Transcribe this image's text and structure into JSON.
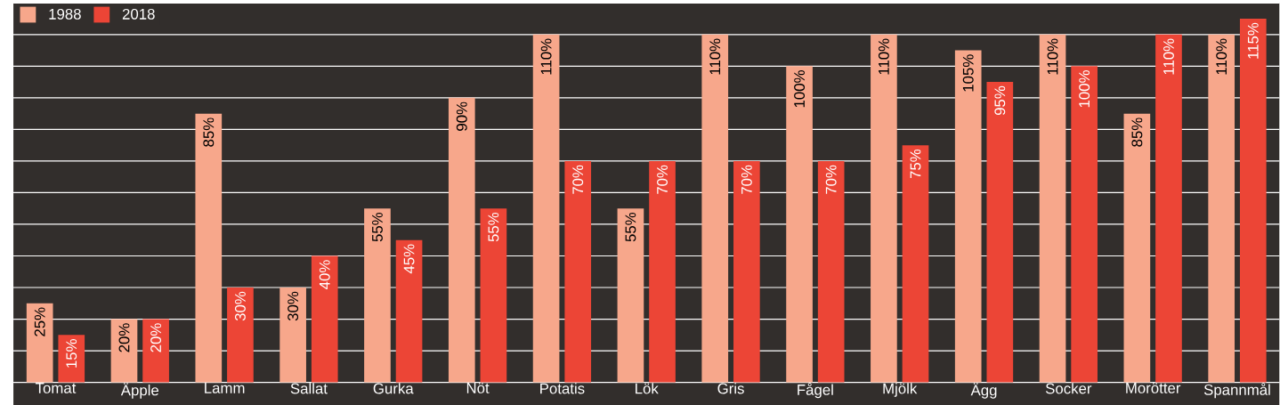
{
  "chart_data": {
    "type": "bar",
    "categories": [
      "Tomat",
      "Äpple",
      "Lamm",
      "Sallat",
      "Gurka",
      "Nöt",
      "Potatis",
      "Lök",
      "Gris",
      "Fågel",
      "Mjölk",
      "Ägg",
      "Socker",
      "Morötter",
      "Spannmål"
    ],
    "series": [
      {
        "name": "1988",
        "color": "#f7a78b",
        "values": [
          25,
          20,
          85,
          30,
          55,
          90,
          110,
          55,
          110,
          100,
          110,
          105,
          110,
          85,
          110
        ],
        "value_labels": [
          "25%",
          "20%",
          "85%",
          "30%",
          "55%",
          "90%",
          "110%",
          "55%",
          "110%",
          "100%",
          "110%",
          "105%",
          "110%",
          "85%",
          "110%"
        ]
      },
      {
        "name": "2018",
        "color": "#ec4536",
        "values": [
          15,
          20,
          30,
          40,
          45,
          55,
          70,
          70,
          70,
          70,
          75,
          95,
          100,
          110,
          115
        ],
        "value_labels": [
          "15%",
          "20%",
          "30%",
          "40%",
          "45%",
          "55%",
          "70%",
          "70%",
          "70%",
          "70%",
          "75%",
          "95%",
          "100%",
          "110%",
          "115%"
        ]
      }
    ],
    "ylim": [
      0,
      120
    ],
    "yticks": [
      {
        "value": 0,
        "label": null
      },
      {
        "value": 10,
        "label": null
      },
      {
        "value": 20,
        "label": null
      },
      {
        "value": 30,
        "label": null
      },
      {
        "value": 40,
        "label": null
      },
      {
        "value": 50,
        "label": null
      },
      {
        "value": 60,
        "label": null
      },
      {
        "value": 70,
        "label": null
      },
      {
        "value": 80,
        "label": null
      },
      {
        "value": 90,
        "label": null
      },
      {
        "value": 100,
        "label": null
      },
      {
        "value": 110,
        "label": null
      },
      {
        "value": 120,
        "label": null
      }
    ],
    "grid": "y",
    "legend": "top left",
    "tick_labels": "x"
  }
}
